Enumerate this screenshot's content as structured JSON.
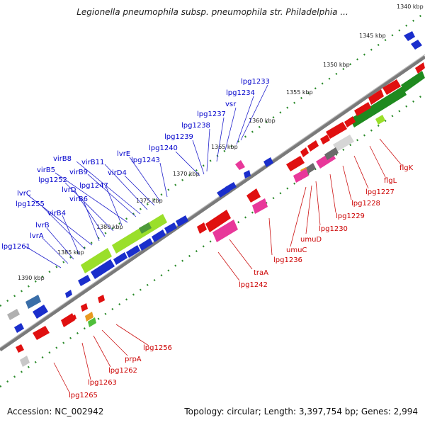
{
  "title": "Legionella pneumophila subsp. pneumophila str. Philadelphia ...",
  "footer": {
    "accession": "Accession: NC_002942",
    "topology": "Topology: circular; Length: 3,397,754 bp; Genes: 2,994"
  },
  "colors": {
    "backbone": "#808080",
    "forward_label": "#0000cc",
    "reverse_label": "#cc0000",
    "tick": "#2a8a2a"
  },
  "kbp_ticks": [
    "1340 kbp",
    "1345 kbp",
    "1350 kbp",
    "1355 kbp",
    "1360 kbp",
    "1365 kbp",
    "1370 kbp",
    "1375 kbp",
    "1380 kbp",
    "1385 kbp",
    "1390 kbp"
  ],
  "forward_gene_labels": [
    "lpg1233",
    "lpg1234",
    "vsr",
    "lpg1237",
    "lpg1238",
    "lpg1239",
    "lpg1240",
    "lpg1243",
    "lvrE",
    "virD4",
    "virB11",
    "virB8",
    "virB9",
    "virB5",
    "lpg1247",
    "lpg1252",
    "lvrD",
    "virB6",
    "lvrC",
    "lpg1255",
    "virB4",
    "lvrB",
    "lvrA",
    "lpg1261"
  ],
  "reverse_gene_labels": [
    "flgK",
    "flgL",
    "lpg1227",
    "lpg1228",
    "lpg1229",
    "lpg1230",
    "umuD",
    "umuC",
    "lpg1236",
    "traA",
    "lpg1242",
    "lpg1256",
    "prpA",
    "lpg1262",
    "lpg1263",
    "lpg1265"
  ]
}
